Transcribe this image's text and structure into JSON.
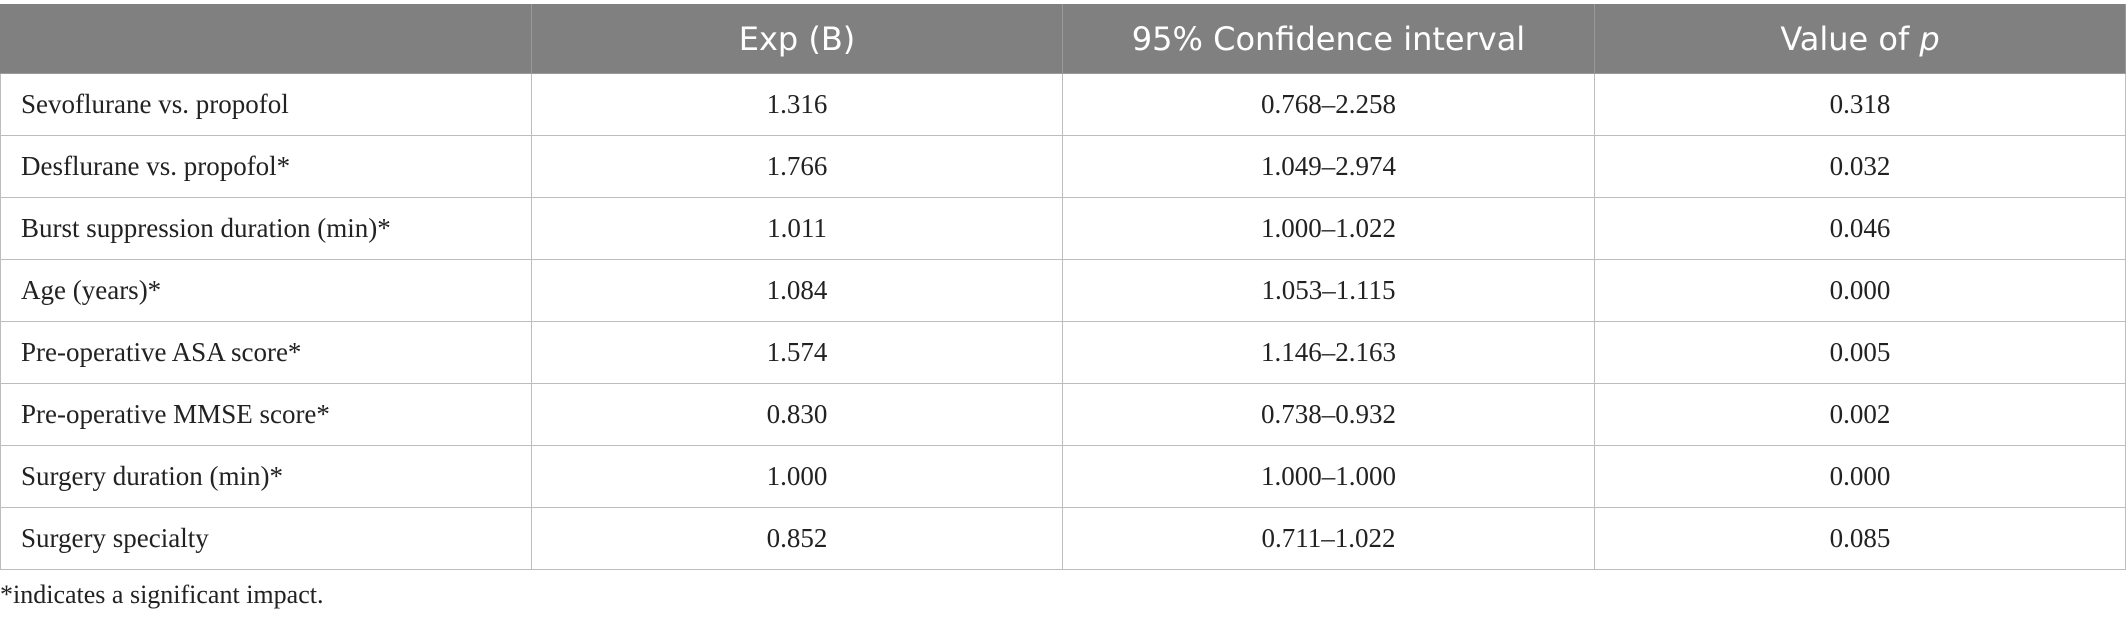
{
  "table": {
    "headers": {
      "col0": "",
      "col1": "Exp (B)",
      "col2": "95% Confidence interval",
      "col3_prefix": "Value of ",
      "col3_italic": "p"
    },
    "rows": [
      {
        "label": "Sevoflurane vs. propofol",
        "exp_b": "1.316",
        "ci": "0.768–2.258",
        "p": "0.318"
      },
      {
        "label": "Desflurane vs. propofol*",
        "exp_b": "1.766",
        "ci": "1.049–2.974",
        "p": "0.032"
      },
      {
        "label": "Burst suppression duration (min)*",
        "exp_b": "1.011",
        "ci": "1.000–1.022",
        "p": "0.046"
      },
      {
        "label": "Age (years)*",
        "exp_b": "1.084",
        "ci": "1.053–1.115",
        "p": "0.000"
      },
      {
        "label": "Pre-operative ASA score*",
        "exp_b": "1.574",
        "ci": "1.146–2.163",
        "p": "0.005"
      },
      {
        "label": "Pre-operative MMSE score*",
        "exp_b": "0.830",
        "ci": "0.738–0.932",
        "p": "0.002"
      },
      {
        "label": "Surgery duration (min)*",
        "exp_b": "1.000",
        "ci": "1.000–1.000",
        "p": "0.000"
      },
      {
        "label": "Surgery specialty",
        "exp_b": "0.852",
        "ci": "0.711–1.022",
        "p": "0.085"
      }
    ]
  },
  "footnote": "*indicates a significant impact.",
  "colors": {
    "header_bg": "#808080",
    "header_text": "#ffffff",
    "border": "#bdbdbd"
  }
}
